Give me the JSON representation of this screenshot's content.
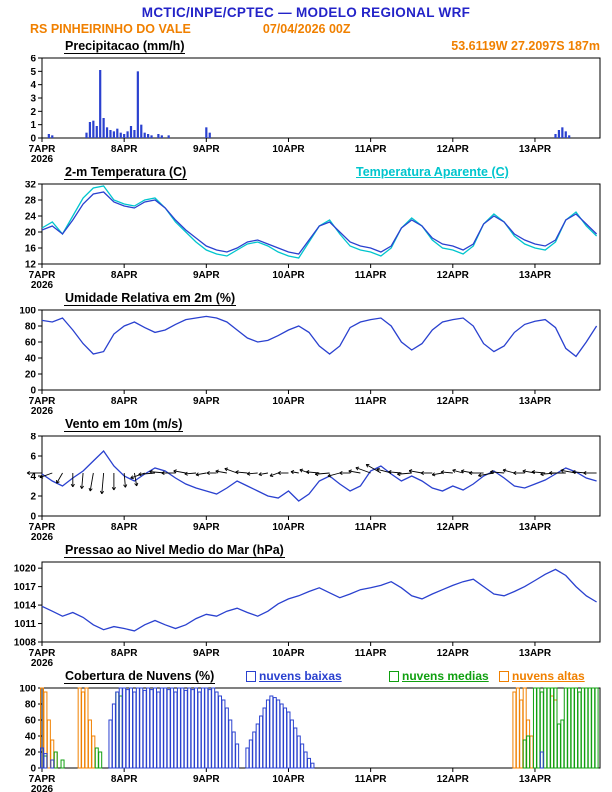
{
  "header": {
    "title": "MCTIC/INPE/CPTEC — MODELO REGIONAL WRF",
    "station": "RS PINHEIRINHO DO VALE",
    "run_datetime": "07/04/2026 00Z",
    "coords": "53.6119W 27.2097S 187m"
  },
  "colors": {
    "title_blue": "#2323c8",
    "orange": "#f08000",
    "line_blue": "#2a41cf",
    "cyan": "#00c5cd",
    "green": "#10a010",
    "black": "#000000"
  },
  "x_axis": {
    "span_hours": 163,
    "year_label": "2026",
    "ticks": [
      {
        "hour": 0,
        "label": "7APR",
        "year": "2026"
      },
      {
        "hour": 24,
        "label": "8APR"
      },
      {
        "hour": 48,
        "label": "9APR"
      },
      {
        "hour": 72,
        "label": "10APR"
      },
      {
        "hour": 96,
        "label": "11APR"
      },
      {
        "hour": 120,
        "label": "12APR"
      },
      {
        "hour": 144,
        "label": "13APR"
      }
    ]
  },
  "chart_data": [
    {
      "id": "precipitation",
      "type": "bars",
      "title": "Precipitacao (mm/h)",
      "ylabel": "mm/h",
      "ylim": [
        0,
        6
      ],
      "yticks": [
        0,
        1,
        2,
        3,
        4,
        5,
        6
      ],
      "color": "line_blue",
      "bars": [
        [
          2,
          0.3
        ],
        [
          3,
          0.2
        ],
        [
          13,
          0.4
        ],
        [
          14,
          1.2
        ],
        [
          15,
          1.3
        ],
        [
          16,
          0.9
        ],
        [
          17,
          5.1
        ],
        [
          18,
          1.5
        ],
        [
          19,
          0.8
        ],
        [
          20,
          0.6
        ],
        [
          21,
          0.5
        ],
        [
          22,
          0.7
        ],
        [
          23,
          0.4
        ],
        [
          24,
          0.3
        ],
        [
          25,
          0.5
        ],
        [
          26,
          0.9
        ],
        [
          27,
          0.6
        ],
        [
          28,
          5.0
        ],
        [
          29,
          1.0
        ],
        [
          30,
          0.4
        ],
        [
          31,
          0.3
        ],
        [
          32,
          0.2
        ],
        [
          34,
          0.3
        ],
        [
          35,
          0.2
        ],
        [
          37,
          0.2
        ],
        [
          48,
          0.8
        ],
        [
          49,
          0.4
        ],
        [
          150,
          0.3
        ],
        [
          151,
          0.6
        ],
        [
          152,
          0.8
        ],
        [
          153,
          0.5
        ],
        [
          154,
          0.2
        ]
      ]
    },
    {
      "id": "temperature",
      "type": "lines",
      "title": "2-m Temperatura (C)",
      "secondary_label": "Temperatura Aparente (C)",
      "ylim": [
        12,
        32
      ],
      "yticks": [
        12,
        16,
        20,
        24,
        28,
        32
      ],
      "step_hours": 3,
      "series": [
        {
          "name": "Temperatura Aparente (C)",
          "color": "cyan",
          "values": [
            21.0,
            22.5,
            19.5,
            24.0,
            28.5,
            31.0,
            31.5,
            28.0,
            27.0,
            26.5,
            28.0,
            28.5,
            26.0,
            22.5,
            20.0,
            17.5,
            15.5,
            14.5,
            14.0,
            15.5,
            17.0,
            17.5,
            16.5,
            15.0,
            14.0,
            13.5,
            17.5,
            21.5,
            23.0,
            19.5,
            16.5,
            15.5,
            15.0,
            14.0,
            16.0,
            21.0,
            23.5,
            21.5,
            18.0,
            16.0,
            15.5,
            14.5,
            16.5,
            22.0,
            24.5,
            22.5,
            19.0,
            17.0,
            16.0,
            15.5,
            17.5,
            23.0,
            25.0,
            21.5,
            19.0
          ]
        },
        {
          "name": "2-m Temperatura (C)",
          "color": "line_blue",
          "values": [
            20.5,
            21.5,
            19.5,
            23.0,
            27.0,
            29.5,
            30.0,
            27.5,
            26.5,
            26.0,
            27.5,
            28.0,
            26.0,
            23.0,
            20.5,
            18.5,
            16.5,
            15.5,
            15.0,
            16.0,
            17.5,
            18.0,
            17.0,
            16.0,
            15.0,
            14.5,
            18.0,
            21.5,
            22.5,
            20.0,
            17.5,
            16.5,
            16.0,
            15.0,
            16.5,
            21.0,
            23.0,
            21.5,
            18.5,
            17.0,
            16.5,
            15.5,
            17.0,
            22.0,
            24.0,
            22.5,
            19.5,
            18.0,
            17.0,
            16.5,
            18.0,
            23.0,
            24.5,
            22.0,
            19.5
          ]
        }
      ]
    },
    {
      "id": "humidity",
      "type": "lines",
      "title": "Umidade Relativa em 2m (%)",
      "ylim": [
        0,
        100
      ],
      "yticks": [
        0,
        20,
        40,
        60,
        80,
        100
      ],
      "step_hours": 3,
      "series": [
        {
          "name": "Umidade Relativa em 2m (%)",
          "color": "line_blue",
          "values": [
            87,
            85,
            90,
            75,
            58,
            45,
            48,
            70,
            80,
            85,
            78,
            72,
            75,
            82,
            88,
            90,
            92,
            90,
            85,
            75,
            65,
            60,
            62,
            68,
            75,
            80,
            72,
            55,
            45,
            55,
            78,
            85,
            88,
            90,
            80,
            60,
            50,
            58,
            75,
            85,
            88,
            90,
            80,
            58,
            48,
            55,
            72,
            82,
            86,
            88,
            78,
            52,
            42,
            60,
            80
          ]
        }
      ]
    },
    {
      "id": "wind",
      "type": "wind",
      "title": "Vento em 10m (m/s)",
      "ylim": [
        0,
        8
      ],
      "yticks": [
        0,
        2,
        4,
        6,
        8
      ],
      "step_hours": 3,
      "arrow_baseline": 4.3,
      "speed_color": "line_blue",
      "arrow_color": "black",
      "speed": [
        4.2,
        3.5,
        3.0,
        3.8,
        4.5,
        5.5,
        6.5,
        5.0,
        4.0,
        3.5,
        4.2,
        4.8,
        4.5,
        3.8,
        3.2,
        2.8,
        2.5,
        2.2,
        2.8,
        3.5,
        3.0,
        2.5,
        2.0,
        1.8,
        2.5,
        1.5,
        2.2,
        3.5,
        4.0,
        3.2,
        2.5,
        3.0,
        4.5,
        5.0,
        4.2,
        3.5,
        4.0,
        3.5,
        2.8,
        2.5,
        3.0,
        2.6,
        3.2,
        4.0,
        4.5,
        3.8,
        3.0,
        2.8,
        3.2,
        3.6,
        4.2,
        4.8,
        4.4,
        3.8,
        3.5
      ],
      "dir_deg": [
        180,
        200,
        240,
        270,
        265,
        260,
        265,
        270,
        275,
        280,
        200,
        185,
        175,
        180,
        170,
        185,
        190,
        180,
        170,
        160,
        175,
        185,
        190,
        200,
        180,
        170,
        160,
        175,
        185,
        195,
        180,
        170,
        160,
        150,
        165,
        175,
        185,
        170,
        180,
        190,
        175,
        165,
        170,
        180,
        190,
        175,
        165,
        180,
        170,
        175,
        185,
        180,
        170,
        175,
        180
      ]
    },
    {
      "id": "pressure",
      "type": "lines",
      "title": "Pressao ao Nivel Medio do Mar (hPa)",
      "ylim": [
        1008,
        1021
      ],
      "yticks": [
        1008,
        1011,
        1014,
        1017,
        1020
      ],
      "step_hours": 3,
      "series": [
        {
          "name": "Pressao ao Nivel Medio do Mar (hPa)",
          "color": "line_blue",
          "values": [
            1013.8,
            1013.0,
            1012.2,
            1012.8,
            1012.0,
            1010.8,
            1010.0,
            1010.5,
            1010.2,
            1009.8,
            1010.8,
            1011.5,
            1010.8,
            1010.2,
            1010.8,
            1011.8,
            1012.5,
            1012.2,
            1013.0,
            1013.5,
            1012.8,
            1012.2,
            1013.0,
            1014.2,
            1015.0,
            1015.5,
            1016.2,
            1016.8,
            1016.0,
            1015.2,
            1015.8,
            1016.5,
            1016.8,
            1017.2,
            1017.8,
            1016.8,
            1015.5,
            1015.0,
            1015.8,
            1016.5,
            1017.2,
            1017.8,
            1018.2,
            1017.0,
            1015.8,
            1015.5,
            1016.2,
            1017.0,
            1018.0,
            1019.0,
            1019.8,
            1018.8,
            1017.0,
            1015.5,
            1014.5
          ]
        }
      ]
    },
    {
      "id": "clouds",
      "type": "cloud_bars",
      "title": "Cobertura de Nuvens (%)",
      "ylim": [
        0,
        100
      ],
      "yticks": [
        0,
        20,
        40,
        60,
        80,
        100
      ],
      "legend": [
        {
          "label": "nuvens baixas",
          "color": "line_blue"
        },
        {
          "label": "nuvens medias",
          "color": "green"
        },
        {
          "label": "nuvens altas",
          "color": "orange"
        }
      ],
      "series": [
        {
          "name": "nuvens altas",
          "color": "orange",
          "bars": [
            [
              0,
              100
            ],
            [
              1,
              95
            ],
            [
              2,
              60
            ],
            [
              3,
              35
            ],
            [
              4,
              20
            ],
            [
              11,
              100
            ],
            [
              12,
              95
            ],
            [
              13,
              100
            ],
            [
              14,
              60
            ],
            [
              15,
              40
            ],
            [
              138,
              95
            ],
            [
              139,
              100
            ],
            [
              140,
              85
            ],
            [
              141,
              100
            ],
            [
              142,
              60
            ],
            [
              143,
              40
            ],
            [
              149,
              90
            ],
            [
              150,
              85
            ]
          ]
        },
        {
          "name": "nuvens medias",
          "color": "green",
          "bars": [
            [
              1,
              15
            ],
            [
              4,
              20
            ],
            [
              6,
              10
            ],
            [
              16,
              25
            ],
            [
              17,
              20
            ],
            [
              22,
              95
            ],
            [
              23,
              90
            ],
            [
              141,
              35
            ],
            [
              142,
              40
            ],
            [
              144,
              100
            ],
            [
              145,
              100
            ],
            [
              146,
              95
            ],
            [
              147,
              100
            ],
            [
              148,
              100
            ],
            [
              149,
              100
            ],
            [
              150,
              100
            ],
            [
              151,
              55
            ],
            [
              152,
              60
            ],
            [
              153,
              100
            ],
            [
              154,
              100
            ],
            [
              155,
              100
            ],
            [
              156,
              100
            ],
            [
              157,
              95
            ],
            [
              158,
              100
            ],
            [
              159,
              100
            ],
            [
              160,
              100
            ],
            [
              161,
              100
            ],
            [
              162,
              100
            ]
          ]
        },
        {
          "name": "nuvens baixas",
          "color": "line_blue",
          "bars": [
            [
              0,
              25
            ],
            [
              1,
              18
            ],
            [
              3,
              10
            ],
            [
              20,
              60
            ],
            [
              21,
              80
            ],
            [
              22,
              95
            ],
            [
              23,
              100
            ],
            [
              24,
              100
            ],
            [
              25,
              98
            ],
            [
              26,
              100
            ],
            [
              27,
              95
            ],
            [
              28,
              100
            ],
            [
              29,
              100
            ],
            [
              30,
              97
            ],
            [
              31,
              100
            ],
            [
              32,
              98
            ],
            [
              33,
              100
            ],
            [
              34,
              95
            ],
            [
              35,
              100
            ],
            [
              36,
              100
            ],
            [
              37,
              98
            ],
            [
              38,
              100
            ],
            [
              39,
              95
            ],
            [
              40,
              100
            ],
            [
              41,
              100
            ],
            [
              42,
              97
            ],
            [
              43,
              100
            ],
            [
              44,
              98
            ],
            [
              45,
              100
            ],
            [
              46,
              95
            ],
            [
              47,
              100
            ],
            [
              48,
              100
            ],
            [
              49,
              98
            ],
            [
              50,
              100
            ],
            [
              51,
              95
            ],
            [
              52,
              90
            ],
            [
              53,
              85
            ],
            [
              54,
              75
            ],
            [
              55,
              60
            ],
            [
              56,
              45
            ],
            [
              57,
              30
            ],
            [
              60,
              25
            ],
            [
              61,
              35
            ],
            [
              62,
              45
            ],
            [
              63,
              55
            ],
            [
              64,
              65
            ],
            [
              65,
              75
            ],
            [
              66,
              85
            ],
            [
              67,
              90
            ],
            [
              68,
              88
            ],
            [
              69,
              85
            ],
            [
              70,
              80
            ],
            [
              71,
              75
            ],
            [
              72,
              70
            ],
            [
              73,
              60
            ],
            [
              74,
              50
            ],
            [
              75,
              40
            ],
            [
              76,
              30
            ],
            [
              77,
              20
            ],
            [
              78,
              12
            ],
            [
              79,
              6
            ],
            [
              146,
              20
            ]
          ]
        }
      ]
    }
  ]
}
